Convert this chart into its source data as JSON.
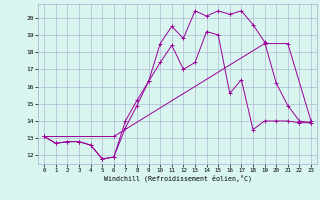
{
  "xlabel": "Windchill (Refroidissement éolien,°C)",
  "background_color": "#d8f5f0",
  "grid_color": "#aaaacc",
  "line_color": "#990099",
  "xlim": [
    -0.5,
    23.5
  ],
  "ylim": [
    11.5,
    20.8
  ],
  "yticks": [
    12,
    13,
    14,
    15,
    16,
    17,
    18,
    19,
    20
  ],
  "xticks": [
    0,
    1,
    2,
    3,
    4,
    5,
    6,
    7,
    8,
    9,
    10,
    11,
    12,
    13,
    14,
    15,
    16,
    17,
    18,
    19,
    20,
    21,
    22,
    23
  ],
  "series1_x": [
    0,
    1,
    2,
    3,
    4,
    5,
    6,
    7,
    8,
    9,
    10,
    11,
    12,
    13,
    14,
    15,
    16,
    17,
    18,
    19,
    20,
    21,
    22,
    23
  ],
  "series1_y": [
    13.1,
    12.7,
    12.8,
    12.8,
    12.6,
    11.8,
    11.9,
    13.6,
    14.9,
    16.3,
    17.4,
    18.4,
    17.0,
    17.4,
    19.2,
    19.0,
    15.6,
    16.4,
    13.5,
    14.0,
    14.0,
    14.0,
    13.9,
    13.9
  ],
  "series2_x": [
    0,
    1,
    2,
    3,
    4,
    5,
    6,
    7,
    8,
    9,
    10,
    11,
    12,
    13,
    14,
    15,
    16,
    17,
    18,
    19,
    20,
    21,
    22,
    23
  ],
  "series2_y": [
    13.1,
    12.7,
    12.8,
    12.8,
    12.6,
    11.8,
    11.9,
    14.0,
    15.2,
    16.3,
    18.5,
    19.5,
    18.8,
    20.4,
    20.1,
    20.4,
    20.2,
    20.4,
    19.6,
    18.6,
    16.2,
    14.9,
    14.0,
    13.9
  ],
  "series3_x": [
    0,
    6,
    19,
    21,
    23
  ],
  "series3_y": [
    13.1,
    13.1,
    18.5,
    18.5,
    14.0
  ]
}
